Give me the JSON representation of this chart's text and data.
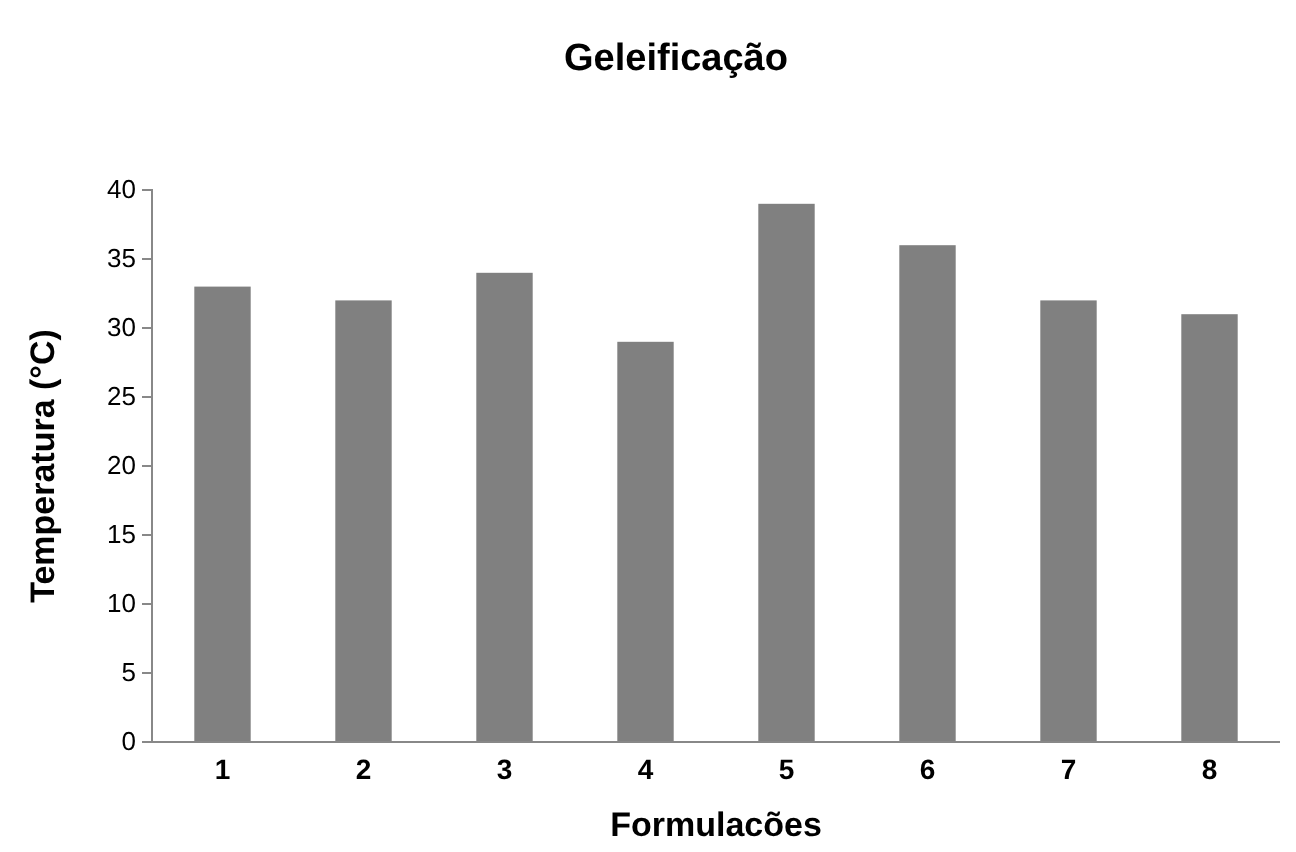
{
  "chart_data": {
    "type": "bar",
    "title": "Geleificação",
    "xlabel": "Formulacões",
    "ylabel": "Temperatura (°C)",
    "categories": [
      "1",
      "2",
      "3",
      "4",
      "5",
      "6",
      "7",
      "8"
    ],
    "values": [
      33,
      32,
      34,
      29,
      39,
      36,
      32,
      31
    ],
    "color": "#808080",
    "ylim": [
      0,
      40
    ],
    "yticks": [
      0,
      5,
      10,
      15,
      20,
      25,
      30,
      35,
      40
    ],
    "grid": false
  }
}
